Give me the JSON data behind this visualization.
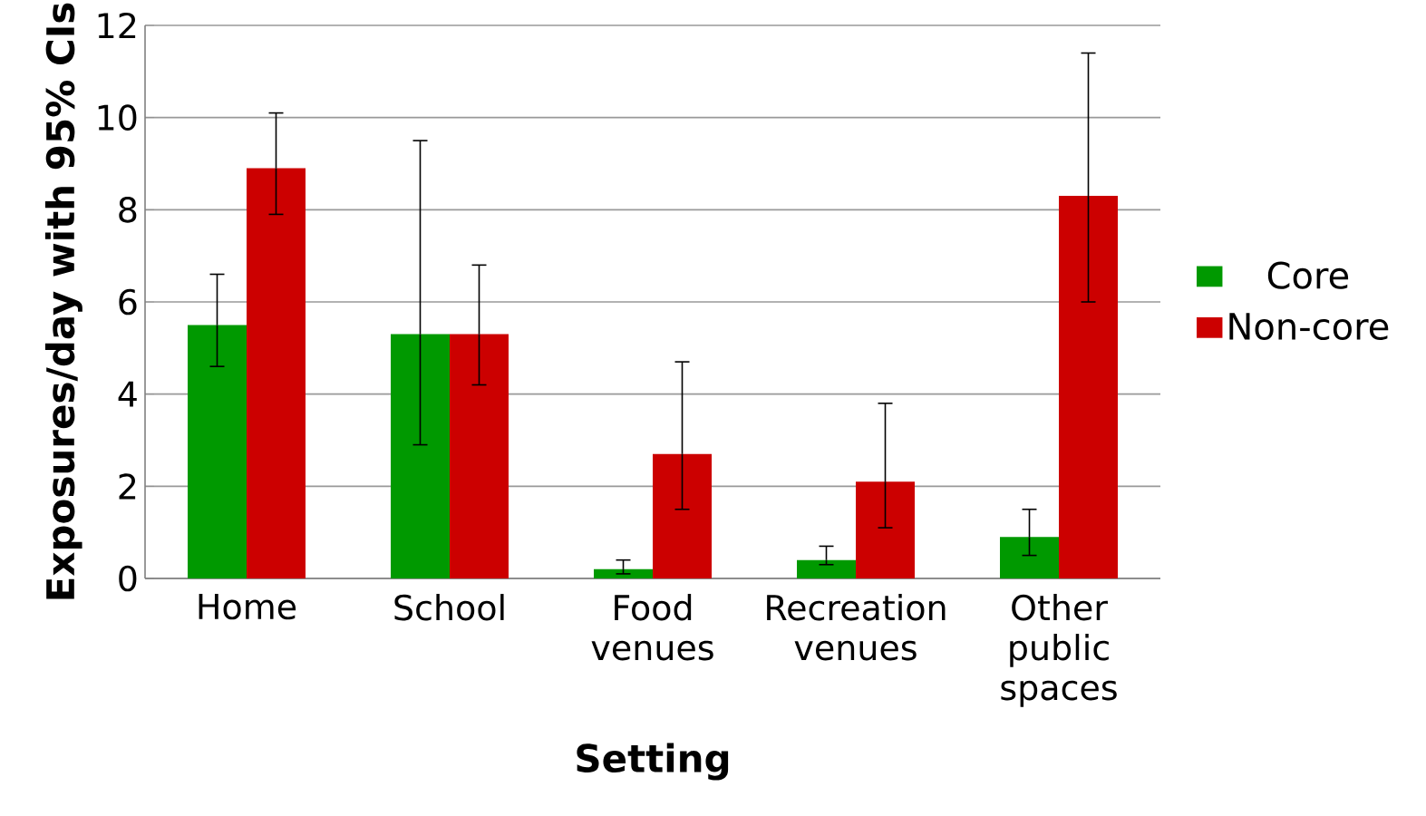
{
  "chart_data": {
    "type": "bar",
    "xlabel": "Setting",
    "ylabel": "Exposures/day with 95% CIs",
    "categories": [
      "Home",
      "School",
      "Food venues",
      "Recreation venues",
      "Other public spaces"
    ],
    "series": [
      {
        "name": "Core",
        "color": "#009900",
        "values": [
          5.5,
          5.3,
          0.2,
          0.4,
          0.9
        ],
        "errors": [
          [
            4.6,
            6.6
          ],
          [
            2.9,
            9.5
          ],
          [
            0.1,
            0.4
          ],
          [
            0.3,
            0.7
          ],
          [
            0.5,
            1.5
          ]
        ]
      },
      {
        "name": "Non-core",
        "color": "#cc0000",
        "values": [
          8.9,
          5.3,
          2.7,
          2.1,
          8.3
        ],
        "errors": [
          [
            7.9,
            10.1
          ],
          [
            4.2,
            6.8
          ],
          [
            1.5,
            4.7
          ],
          [
            1.1,
            3.8
          ],
          [
            6.0,
            11.4
          ]
        ]
      }
    ],
    "ylim": [
      0,
      12
    ],
    "yticks": [
      0,
      2,
      4,
      6,
      8,
      10,
      12
    ],
    "grid": "y",
    "legend": "right"
  }
}
